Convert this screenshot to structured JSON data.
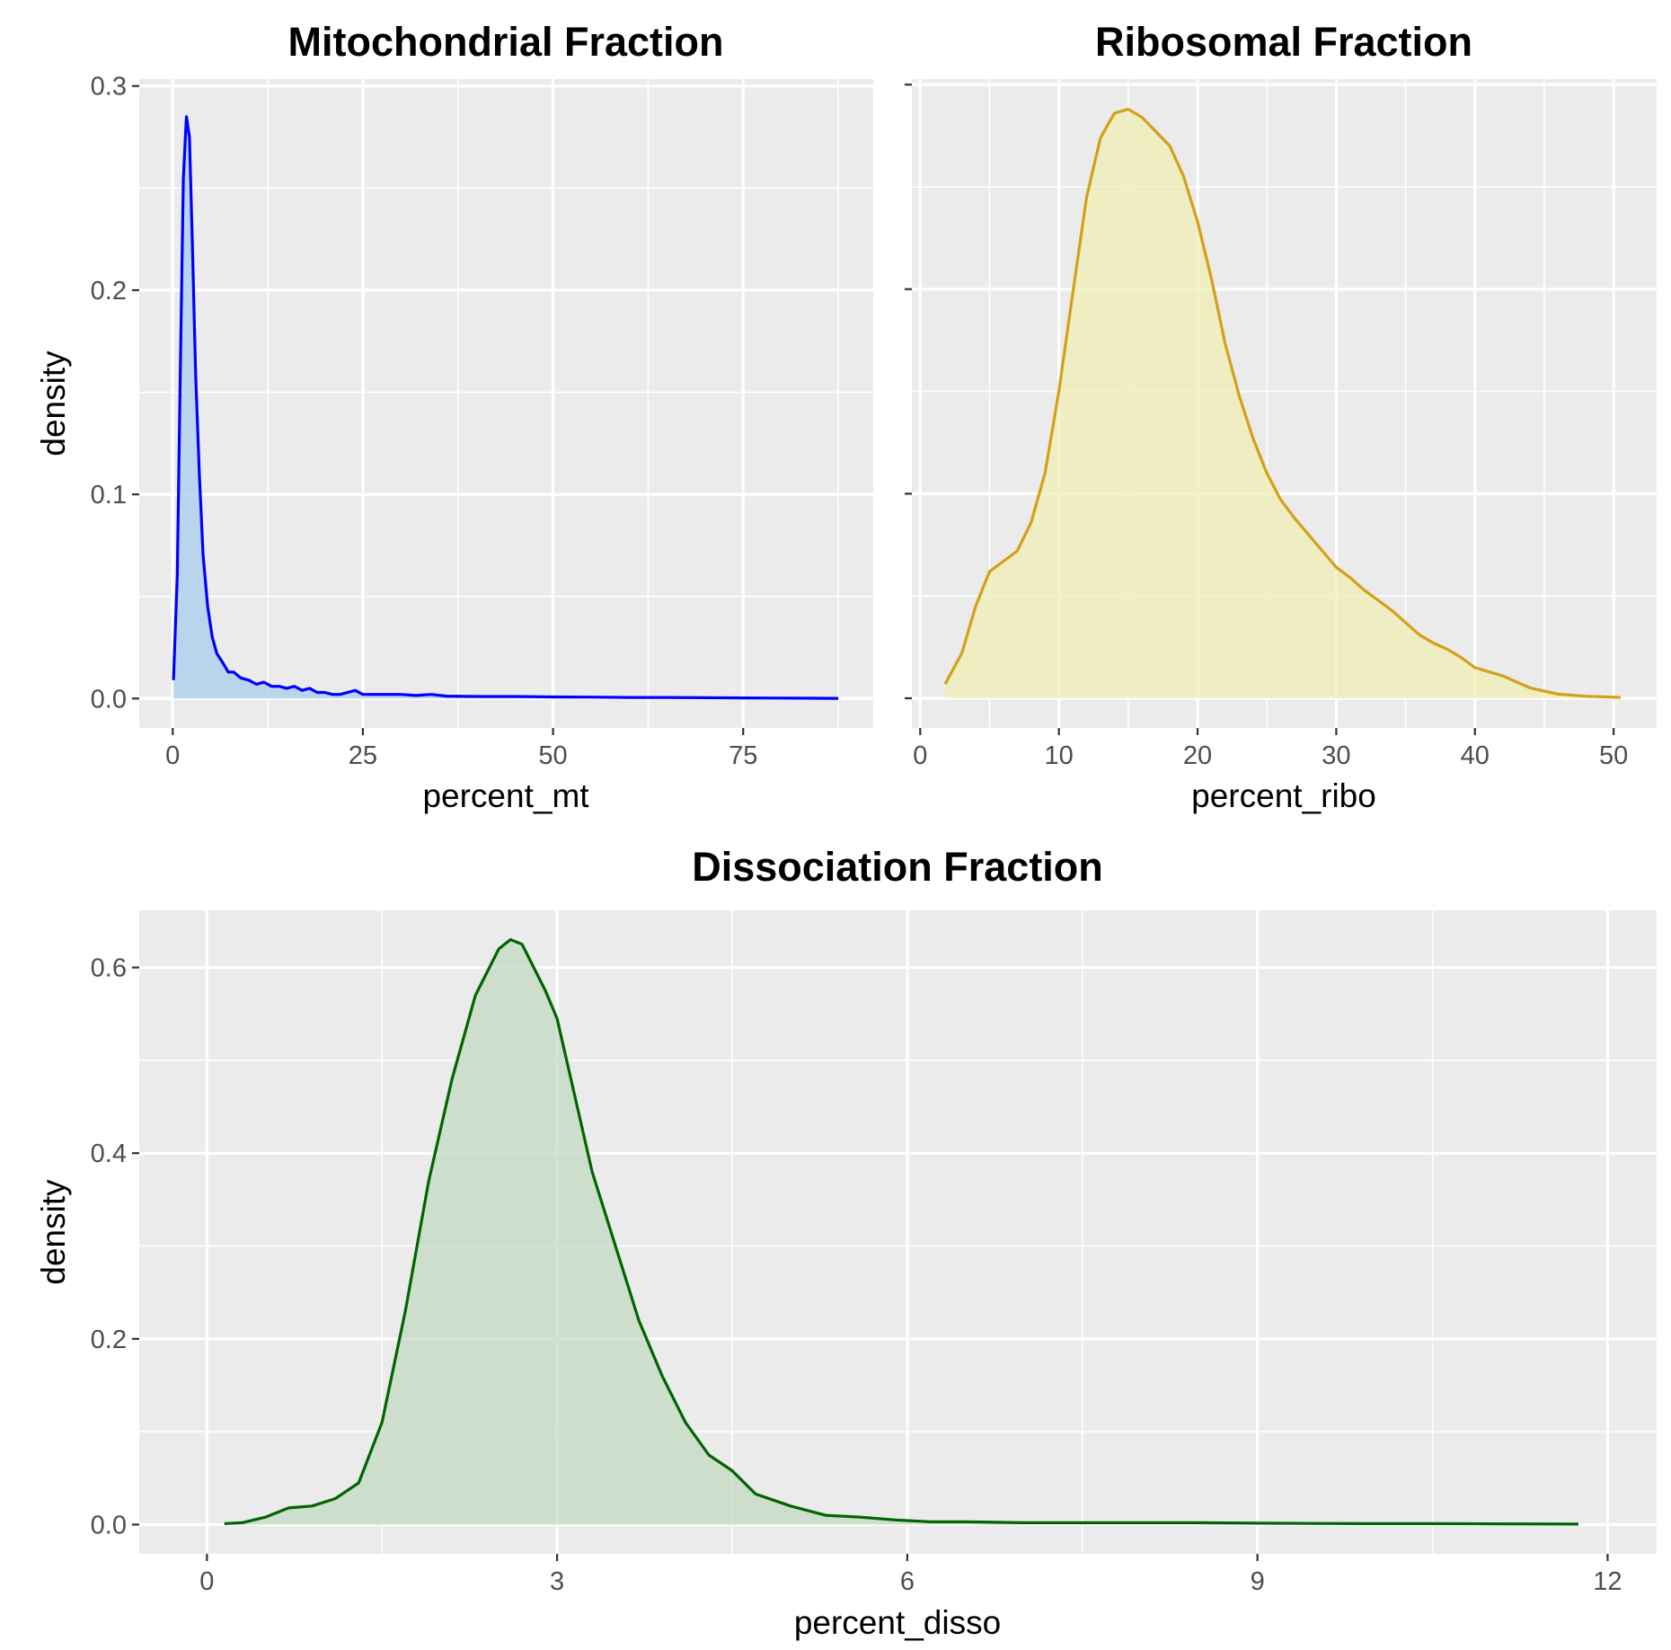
{
  "chart_data": [
    {
      "type": "area",
      "title": "Mitochondrial Fraction",
      "xlabel": "percent_mt",
      "ylabel": "density",
      "xlim": [
        -4.4,
        92.1
      ],
      "ylim": [
        -0.0144,
        0.3034
      ],
      "x_ticks": [
        0,
        25,
        50,
        75
      ],
      "y_ticks": [
        0.0,
        0.1,
        0.2,
        0.3
      ],
      "x_tick_labels": [
        "0",
        "25",
        "50",
        "75"
      ],
      "y_tick_labels": [
        "0.0",
        "0.1",
        "0.2",
        "0.3"
      ],
      "grid": true,
      "series": [
        {
          "line_color": "#0000ff",
          "fill_color": "#aaccee",
          "x": [
            0.1,
            0.6,
            1.0,
            1.4,
            1.8,
            2.2,
            2.6,
            3.0,
            3.5,
            4.0,
            4.6,
            5.2,
            5.8,
            6.5,
            7.3,
            8.0,
            9.0,
            10.0,
            11.0,
            12.0,
            13.0,
            14.0,
            15.0,
            16.0,
            17.0,
            18.0,
            19.0,
            20.0,
            21.0,
            22.0,
            23.0,
            24.0,
            25.0,
            26.0,
            27.0,
            28.0,
            29.0,
            30.0,
            32.0,
            34.0,
            36.0,
            40.0,
            45.0,
            50.0,
            55.0,
            60.0,
            65.0,
            70.0,
            75.0,
            80.0,
            87.5
          ],
          "y": [
            0.009,
            0.06,
            0.16,
            0.255,
            0.285,
            0.275,
            0.22,
            0.16,
            0.11,
            0.07,
            0.045,
            0.03,
            0.022,
            0.018,
            0.013,
            0.013,
            0.01,
            0.009,
            0.007,
            0.008,
            0.006,
            0.006,
            0.005,
            0.006,
            0.004,
            0.005,
            0.003,
            0.003,
            0.002,
            0.002,
            0.003,
            0.004,
            0.002,
            0.002,
            0.002,
            0.002,
            0.002,
            0.002,
            0.0015,
            0.002,
            0.0012,
            0.001,
            0.001,
            0.0008,
            0.0007,
            0.0005,
            0.0005,
            0.0004,
            0.0003,
            0.0002,
            0.0001
          ]
        }
      ]
    },
    {
      "type": "area",
      "title": "Ribosomal Fraction",
      "xlabel": "percent_ribo",
      "ylabel": "",
      "xlim": [
        -0.6,
        53.1
      ],
      "ylim": [
        -0.0145,
        0.3027
      ],
      "x_ticks": [
        0,
        10,
        20,
        30,
        40,
        50
      ],
      "y_ticks": [
        0.0,
        0.1,
        0.2,
        0.3
      ],
      "x_tick_labels": [
        "0",
        "10",
        "20",
        "30",
        "40",
        "50"
      ],
      "y_tick_labels": [],
      "grid": true,
      "series": [
        {
          "line_color": "#d4a017",
          "fill_color": "#f0efb5",
          "x": [
            1.8,
            3.0,
            4.0,
            5.0,
            6.0,
            7.0,
            8.0,
            9.0,
            10.0,
            11.0,
            12.0,
            13.0,
            14.0,
            15.0,
            16.0,
            17.0,
            18.0,
            19.0,
            20.0,
            21.0,
            22.0,
            23.0,
            24.0,
            25.0,
            26.0,
            27.0,
            28.0,
            29.0,
            30.0,
            31.0,
            32.0,
            33.0,
            34.0,
            35.0,
            36.0,
            37.0,
            38.0,
            39.0,
            40.0,
            42.0,
            44.0,
            46.0,
            48.0,
            50.5
          ],
          "y": [
            0.007,
            0.022,
            0.045,
            0.062,
            0.067,
            0.072,
            0.086,
            0.11,
            0.15,
            0.198,
            0.245,
            0.274,
            0.286,
            0.288,
            0.284,
            0.277,
            0.27,
            0.255,
            0.233,
            0.205,
            0.173,
            0.148,
            0.127,
            0.11,
            0.097,
            0.088,
            0.08,
            0.072,
            0.064,
            0.059,
            0.053,
            0.048,
            0.043,
            0.037,
            0.031,
            0.027,
            0.024,
            0.02,
            0.015,
            0.011,
            0.005,
            0.002,
            0.001,
            0.0004
          ]
        }
      ]
    },
    {
      "type": "area",
      "title": "Dissociation Fraction",
      "xlabel": "percent_disso",
      "ylabel": "density",
      "xlim": [
        -0.58,
        12.42
      ],
      "ylim": [
        -0.0315,
        0.6615
      ],
      "x_ticks": [
        0,
        3,
        6,
        9,
        12
      ],
      "y_ticks": [
        0.0,
        0.2,
        0.4,
        0.6
      ],
      "x_tick_labels": [
        "0",
        "3",
        "6",
        "9",
        "12"
      ],
      "y_tick_labels": [
        "0.0",
        "0.2",
        "0.4",
        "0.6"
      ],
      "grid": true,
      "series": [
        {
          "line_color": "#006400",
          "fill_color": "#c3d9c3",
          "x": [
            0.15,
            0.3,
            0.5,
            0.7,
            0.9,
            1.1,
            1.3,
            1.5,
            1.7,
            1.9,
            2.1,
            2.3,
            2.5,
            2.6,
            2.7,
            2.8,
            2.9,
            3.0,
            3.1,
            3.3,
            3.5,
            3.7,
            3.9,
            4.1,
            4.3,
            4.5,
            4.7,
            5.0,
            5.3,
            5.6,
            5.9,
            6.2,
            6.5,
            7.0,
            7.5,
            8.0,
            8.5,
            9.0,
            9.5,
            10.0,
            10.5,
            11.0,
            11.75
          ],
          "y": [
            0.001,
            0.002,
            0.008,
            0.018,
            0.02,
            0.028,
            0.045,
            0.11,
            0.23,
            0.37,
            0.48,
            0.57,
            0.62,
            0.63,
            0.625,
            0.6,
            0.575,
            0.545,
            0.49,
            0.38,
            0.3,
            0.22,
            0.16,
            0.11,
            0.075,
            0.058,
            0.033,
            0.02,
            0.01,
            0.008,
            0.005,
            0.003,
            0.003,
            0.002,
            0.002,
            0.002,
            0.002,
            0.0015,
            0.0012,
            0.001,
            0.001,
            0.0008,
            0.0005
          ]
        }
      ]
    }
  ]
}
